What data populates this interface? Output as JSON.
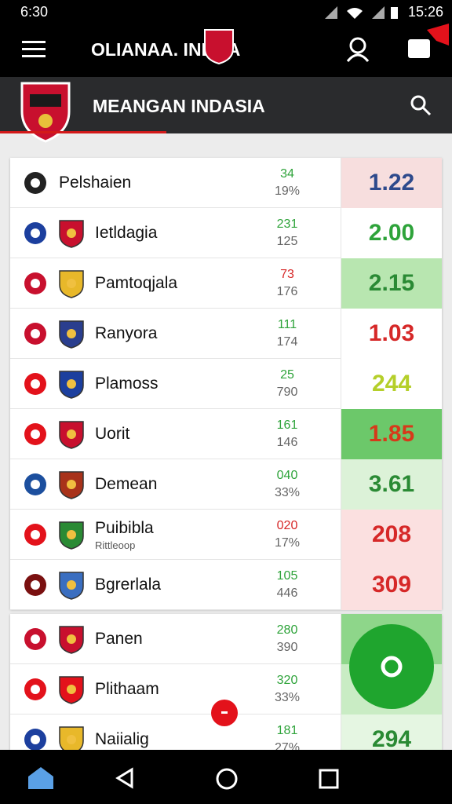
{
  "status_bar": {
    "time_left": "6:30",
    "time_right": "15:26"
  },
  "app_bar": {
    "title": "OLIANAA. INDAA"
  },
  "header": {
    "title": "MEANGAN INDASIA"
  },
  "rows": [
    {
      "name": "Pelshaien",
      "stat1": "34",
      "stat2": "19%",
      "odds": "1.22"
    },
    {
      "name": "Ietldagia",
      "stat1": "231",
      "stat2": "125",
      "odds": "2.00"
    },
    {
      "name": "Pamtoqjala",
      "stat1": "73",
      "stat2": "176",
      "odds": "2.15"
    },
    {
      "name": "Ranyora",
      "stat1": "111",
      "stat2": "174",
      "odds": "1.03"
    },
    {
      "name": "Plamoss",
      "stat1": "25",
      "stat2": "790",
      "odds": "244"
    },
    {
      "name": "Uorit",
      "stat1": "161",
      "stat2": "146",
      "odds": "1.85"
    },
    {
      "name": "Demean",
      "stat1": "040",
      "stat2": "33%",
      "odds": "3.61"
    },
    {
      "name": "Puibibla",
      "sub": "Rittleoop",
      "stat1": "020",
      "stat2": "17%",
      "odds": "208"
    },
    {
      "name": "Bgrerlala",
      "stat1": "105",
      "stat2": "446",
      "odds": "309"
    }
  ],
  "featured": [
    {
      "name": "Panen",
      "stat1": "280",
      "stat2": "390"
    },
    {
      "name": "Plithaam",
      "stat1": "320",
      "stat2": "33%"
    },
    {
      "name": "Naiialig",
      "stat1": "181",
      "stat2": "27%",
      "odds": "294"
    }
  ]
}
